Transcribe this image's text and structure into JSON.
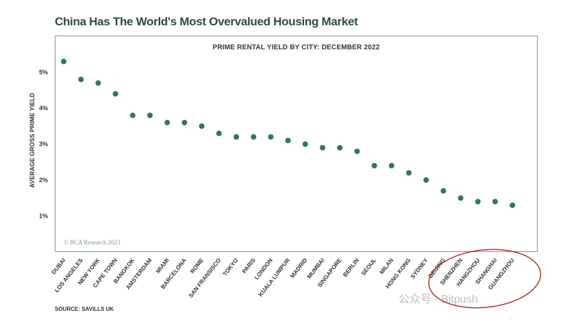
{
  "title": "China Has The World's Most Overvalued Housing Market",
  "copyright": "© BCA Research 2023",
  "source": "SOURCE: SAVILLS UK",
  "watermark": "公众号 · Bitpush",
  "colors": {
    "dot": "#2e7a4f",
    "title": "#2b4b3c",
    "frame": "#7a9a8a",
    "highlight": "#b52a2a"
  },
  "chart_data": {
    "type": "scatter",
    "title": "PRIME RENTAL YIELD BY CITY: DECEMBER 2022",
    "xlabel": "",
    "ylabel": "AVERAGE GROSS PRIME YIELD",
    "ylim": [
      0.5,
      5.6
    ],
    "yticks": [
      "1%",
      "2%",
      "3%",
      "4%",
      "5%"
    ],
    "yticks_values": [
      1,
      2,
      3,
      4,
      5
    ],
    "grid": false,
    "categories": [
      "DUBAI",
      "LOS ANGELES",
      "NEW YORK",
      "CAPE TOWN",
      "BANGKOK",
      "AMSTERDAM",
      "MIAMI",
      "BARCELONA",
      "ROME",
      "SAN FRANSISCO",
      "TOKYO",
      "PARIS",
      "LONDON",
      "KUALA LUMPUR",
      "MADRID",
      "MUMBAI",
      "SINGAPORE",
      "BERLIN",
      "SEOUL",
      "MILAN",
      "HONG KONG",
      "SYDNEY",
      "BEIJING",
      "SHENZHEN",
      "HANGZHOU",
      "SHANGHAI",
      "GUANGZHOU"
    ],
    "values": [
      5.3,
      4.8,
      4.7,
      4.4,
      3.8,
      3.8,
      3.6,
      3.6,
      3.5,
      3.3,
      3.2,
      3.2,
      3.2,
      3.1,
      3.0,
      2.9,
      2.9,
      2.8,
      2.4,
      2.4,
      2.2,
      2.0,
      1.7,
      1.5,
      1.4,
      1.4,
      1.3
    ],
    "highlighted": [
      "BEIJING",
      "SHENZHEN",
      "HANGZHOU",
      "SHANGHAI",
      "GUANGZHOU"
    ]
  }
}
